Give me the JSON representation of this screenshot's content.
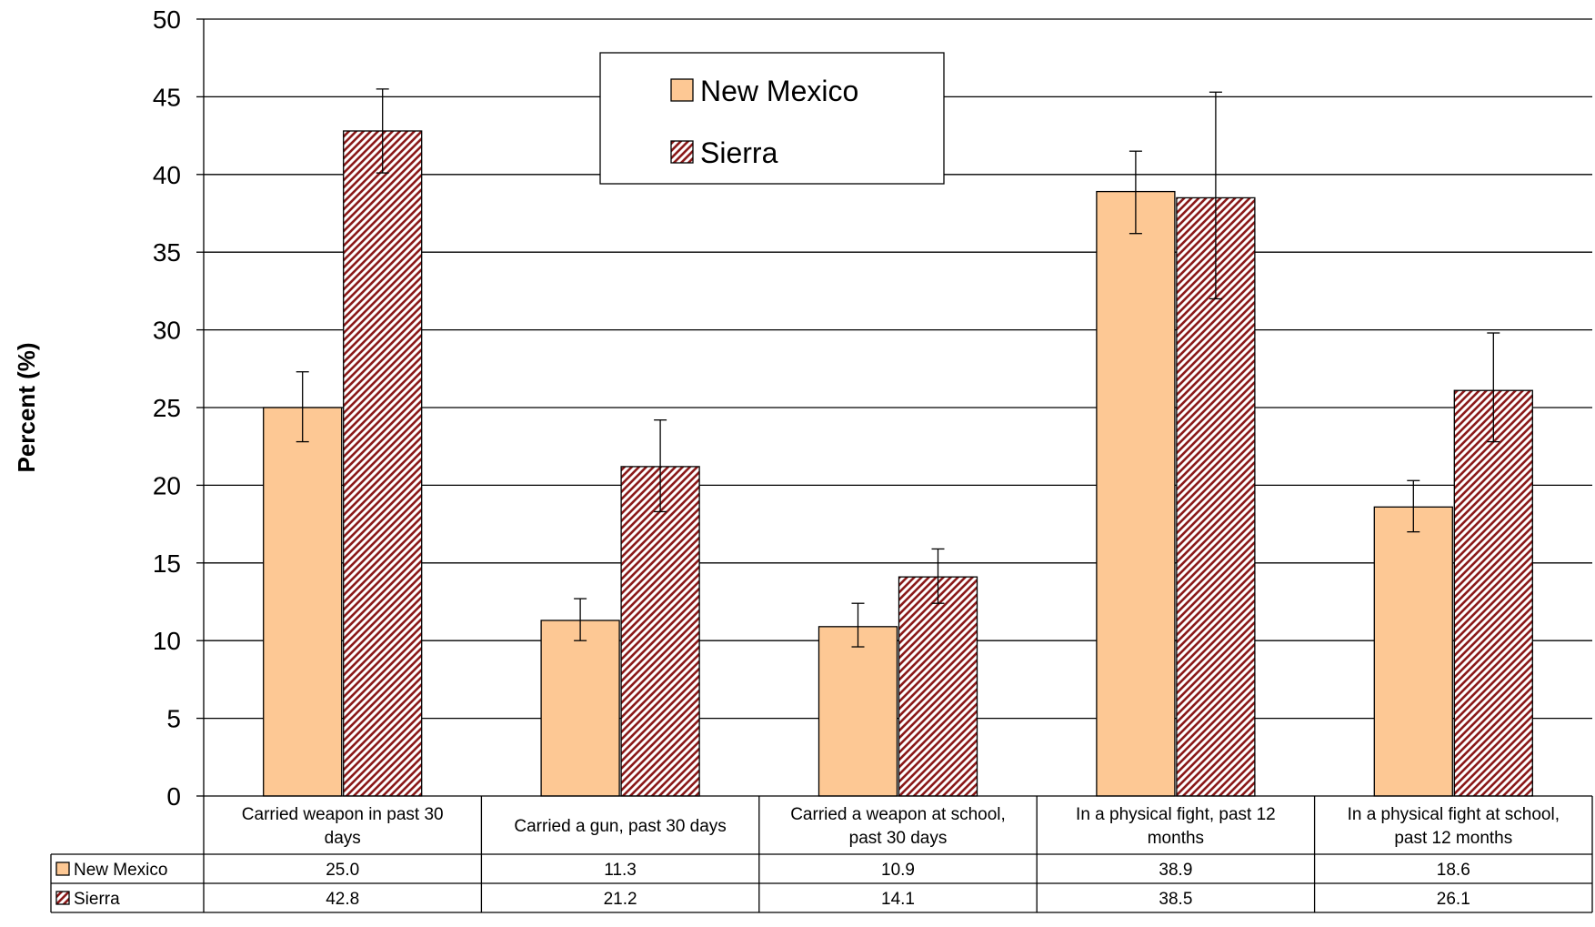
{
  "chart_data": {
    "type": "bar",
    "title": "",
    "xlabel": "",
    "ylabel": "Percent (%)",
    "ylim": [
      0,
      50
    ],
    "ytick_step": 5,
    "grid": true,
    "legend_position": "top-center",
    "categories": [
      [
        "Carried weapon in past 30",
        "days"
      ],
      [
        "Carried a gun, past 30 days"
      ],
      [
        "Carried a weapon at school,",
        "past 30 days"
      ],
      [
        "In a physical fight, past 12",
        "months"
      ],
      [
        "In a physical fight at school,",
        "past 12 months"
      ]
    ],
    "series": [
      {
        "name": "New Mexico",
        "color": "#fdc894",
        "pattern": "solid",
        "values": [
          25.0,
          11.3,
          10.9,
          38.9,
          18.6
        ],
        "labels": [
          "25.0",
          "11.3",
          "10.9",
          "38.9",
          "18.6"
        ],
        "err_low": [
          22.8,
          10.0,
          9.6,
          36.2,
          17.0
        ],
        "err_high": [
          27.3,
          12.7,
          12.4,
          41.5,
          20.3
        ]
      },
      {
        "name": "Sierra",
        "color": "#8b1a1a",
        "pattern": "diagonal-hatch",
        "values": [
          42.8,
          21.2,
          14.1,
          38.5,
          26.1
        ],
        "labels": [
          "42.8",
          "21.2",
          "14.1",
          "38.5",
          "26.1"
        ],
        "err_low": [
          40.1,
          18.3,
          12.4,
          32.0,
          22.8
        ],
        "err_high": [
          45.5,
          24.2,
          15.9,
          45.3,
          29.8
        ]
      }
    ],
    "data_table": true
  }
}
